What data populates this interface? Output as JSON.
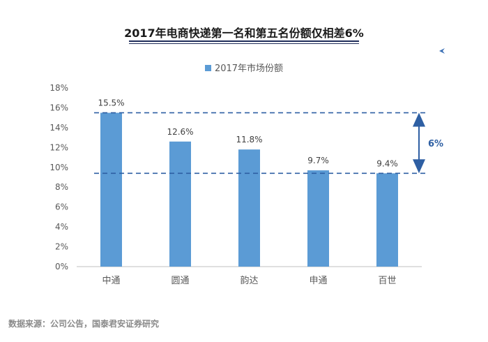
{
  "title": "2017年电商快递第一名和第五名份额仅相差6%",
  "source": "数据来源：公司公告，国泰君安证券研究",
  "colors": {
    "bar": "#5b9bd5",
    "annotation": "#2e5fa3",
    "axis": "#bfbfbf",
    "text": "#595959"
  },
  "chart_data": {
    "type": "bar",
    "categories": [
      "中通",
      "圆通",
      "韵达",
      "申通",
      "百世"
    ],
    "series": [
      {
        "name": "2017年市场份额",
        "values": [
          15.5,
          12.6,
          11.8,
          9.7,
          9.4
        ]
      }
    ],
    "data_labels": [
      "15.5%",
      "12.6%",
      "11.8%",
      "9.7%",
      "9.4%"
    ],
    "ylim": [
      0,
      18
    ],
    "yticks": [
      0,
      2,
      4,
      6,
      8,
      10,
      12,
      14,
      16,
      18
    ],
    "ytick_labels": [
      "0%",
      "2%",
      "4%",
      "6%",
      "8%",
      "10%",
      "12%",
      "14%",
      "16%",
      "18%"
    ],
    "legend_position": "top",
    "grid": false,
    "reference_lines": [
      15.5,
      9.4
    ],
    "annotation": {
      "label": "6%",
      "from": 9.4,
      "to": 15.5
    }
  }
}
